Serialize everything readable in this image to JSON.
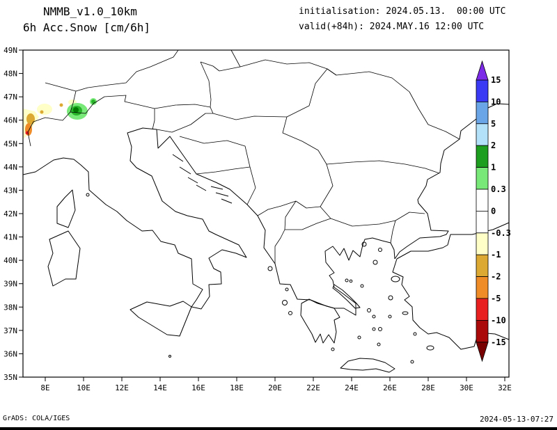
{
  "header": {
    "model": "NMMB_v1.0_10km",
    "product": "6h Acc.Snow [cm/6h]",
    "init": "initialisation: 2024.05.13.  00:00 UTC",
    "valid": "valid(+84h): 2024.MAY.16 12:00 UTC"
  },
  "footer": {
    "left": "GrADS: COLA/IGES",
    "right": "2024-05-13-07:27"
  },
  "axes": {
    "lat_labels": [
      "49N",
      "48N",
      "47N",
      "46N",
      "45N",
      "44N",
      "43N",
      "42N",
      "41N",
      "40N",
      "39N",
      "38N",
      "37N",
      "36N",
      "35N"
    ],
    "lon_labels": [
      "8E",
      "10E",
      "12E",
      "14E",
      "16E",
      "18E",
      "20E",
      "22E",
      "24E",
      "26E",
      "28E",
      "30E",
      "32E"
    ]
  },
  "colorbar": {
    "boundary_labels": [
      "15",
      "10",
      "5",
      "2",
      "1",
      "0.3",
      "0",
      "-0.3",
      "-1",
      "-2",
      "-5",
      "-10",
      "-15"
    ],
    "segment_colors_top_to_bottom": [
      "#3a3af5",
      "#6aa5e8",
      "#b4e1fa",
      "#1e9e1e",
      "#78e878",
      "#ffffff",
      "#ffffff",
      "#ffffc8",
      "#dcaa32",
      "#f08c28",
      "#e82020",
      "#aa0a0a"
    ],
    "arrow_top_color": "#7d2ae8",
    "arrow_bottom_color": "#780000"
  },
  "chart_data": {
    "type": "map",
    "title": "6h Acc.Snow [cm/6h]",
    "model": "NMMB_v1.0_10km",
    "initialisation": "2024.05.13 00:00 UTC",
    "valid": "2024.MAY.16 12:00 UTC (+84h)",
    "units": "cm/6h",
    "bounds": {
      "lon_min_e": 7,
      "lon_max_e": 32,
      "lat_min_n": 35,
      "lat_max_n": 49
    },
    "colorbar_levels": [
      -15,
      -10,
      -5,
      -2,
      -1,
      -0.3,
      0,
      0.3,
      1,
      2,
      5,
      10,
      15
    ],
    "snow_patches": [
      {
        "region": "western Alps at map edge ~7.2E,45.6N",
        "bin": "-2 to -5",
        "color": "orange"
      },
      {
        "region": "western Alps at map edge ~7.3E,46.1N",
        "bin": "-1 to -2",
        "color": "gold"
      },
      {
        "region": "western Alps ~7.0-8.0E,46.3-46.8N",
        "bin": "-0.3 to -1",
        "color": "pale-yellow"
      },
      {
        "region": "central Alps ~9.4-9.9E,46.1-46.7N",
        "bin": "0.3 to 1",
        "color": "light-green"
      },
      {
        "region": "central Alps core ~9.6E,46.4N",
        "bin": "1 to 2",
        "color": "dark-green"
      },
      {
        "region": "Alps speck ~10.5E,46.8N",
        "bin": "1 to 2",
        "color": "green"
      }
    ]
  }
}
